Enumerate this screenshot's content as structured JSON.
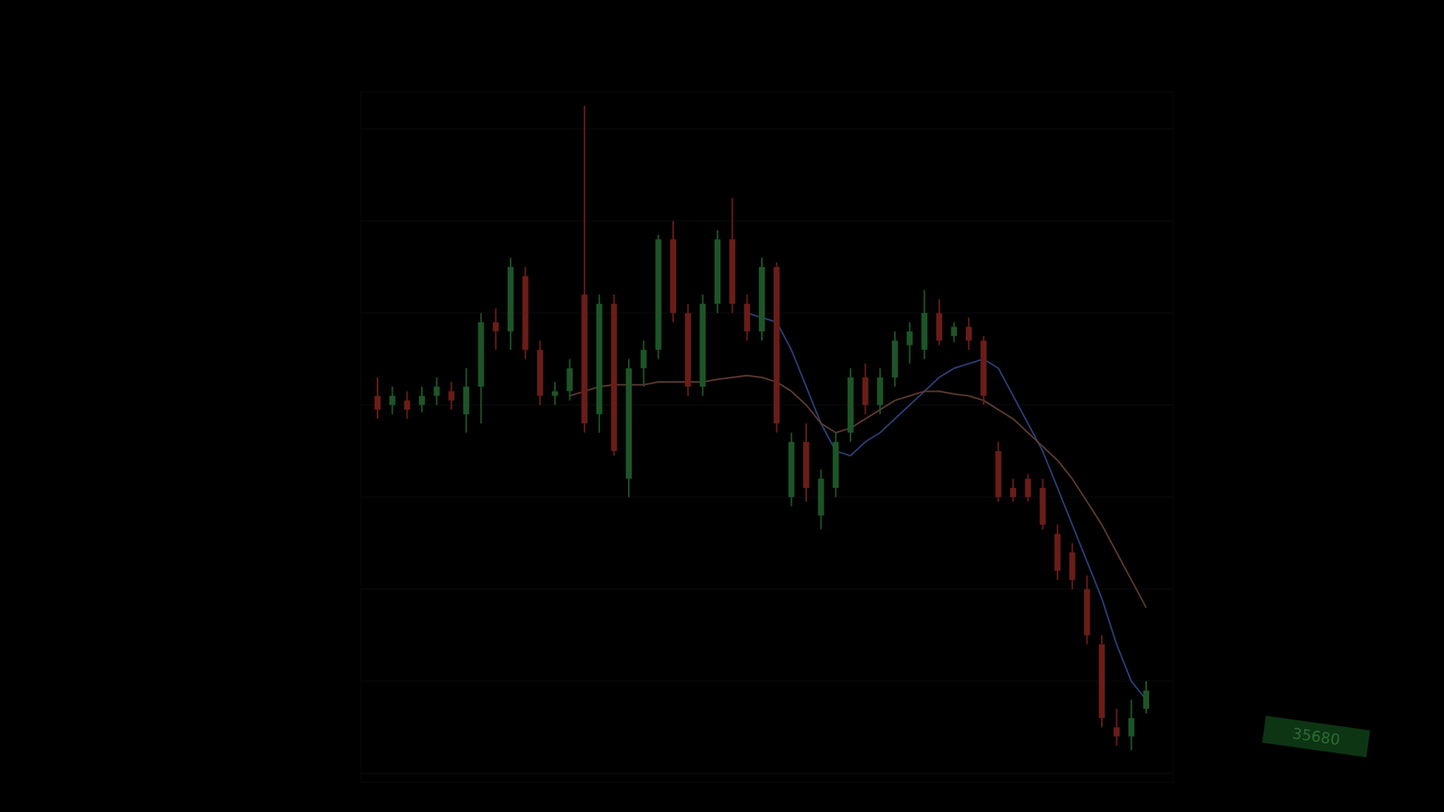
{
  "chart_data": {
    "type": "candlestick",
    "categories": [
      null,
      null,
      null,
      null,
      null,
      null,
      null,
      null,
      null,
      null,
      null,
      null,
      null,
      null,
      null,
      null,
      null,
      null,
      null,
      null,
      null,
      null,
      null,
      null,
      null,
      null,
      null,
      null,
      null,
      null,
      null,
      null,
      null,
      null,
      null,
      null,
      null,
      null,
      null,
      null,
      null,
      null,
      null,
      null,
      null,
      null,
      null,
      null,
      null,
      null,
      null,
      null,
      null
    ],
    "open": [
      36420,
      36400,
      36410,
      36400,
      36420,
      36430,
      36380,
      36440,
      36580,
      36560,
      36680,
      36520,
      36420,
      36430,
      36640,
      36380,
      36620,
      36240,
      36480,
      36520,
      36760,
      36600,
      36440,
      36620,
      36760,
      36620,
      36560,
      36700,
      36200,
      36320,
      36160,
      36220,
      36340,
      36460,
      36400,
      36460,
      36530,
      36520,
      36600,
      36550,
      36570,
      36540,
      36300,
      36220,
      36240,
      36220,
      36120,
      36080,
      36000,
      35880,
      35700,
      35680,
      35740
    ],
    "close": [
      36390,
      36420,
      36390,
      36420,
      36440,
      36410,
      36440,
      36580,
      36560,
      36700,
      36520,
      36420,
      36430,
      36480,
      36360,
      36620,
      36300,
      36480,
      36520,
      36760,
      36600,
      36440,
      36620,
      36760,
      36620,
      36560,
      36700,
      36360,
      36320,
      36220,
      36240,
      36320,
      36460,
      36400,
      36460,
      36540,
      36560,
      36600,
      36540,
      36570,
      36540,
      36420,
      36200,
      36200,
      36200,
      36140,
      36040,
      36020,
      35900,
      35720,
      35680,
      35720,
      35780
    ],
    "high": [
      36460,
      36440,
      36430,
      36440,
      36460,
      36450,
      36480,
      36600,
      36610,
      36720,
      36700,
      36540,
      36450,
      36500,
      37050,
      36640,
      36640,
      36500,
      36540,
      36770,
      36800,
      36620,
      36640,
      36780,
      36850,
      36640,
      36720,
      36710,
      36340,
      36360,
      36260,
      36340,
      36480,
      36490,
      36480,
      36560,
      36580,
      36650,
      36630,
      36580,
      36590,
      36550,
      36320,
      36240,
      36250,
      36240,
      36140,
      36100,
      36030,
      35900,
      35740,
      35760,
      35800
    ],
    "low": [
      36370,
      36380,
      36370,
      36384,
      36400,
      36390,
      36340,
      36360,
      36520,
      36520,
      36500,
      36400,
      36400,
      36410,
      36340,
      36340,
      36290,
      36200,
      36440,
      36500,
      36580,
      36420,
      36420,
      36600,
      36600,
      36540,
      36540,
      36340,
      36180,
      36190,
      36130,
      36200,
      36320,
      36380,
      36380,
      36440,
      36490,
      36500,
      36530,
      36536,
      36520,
      36400,
      36190,
      36190,
      36190,
      36130,
      36020,
      36000,
      35880,
      35700,
      35660,
      35650,
      35730
    ],
    "series": [
      {
        "type": "line",
        "color": "#2b3f78",
        "values": [
          null,
          null,
          null,
          null,
          null,
          null,
          null,
          null,
          null,
          null,
          null,
          null,
          null,
          null,
          null,
          null,
          null,
          null,
          null,
          null,
          null,
          null,
          null,
          null,
          null,
          36600,
          36590,
          36580,
          36520,
          36440,
          36360,
          36300,
          36290,
          36320,
          36340,
          36370,
          36400,
          36430,
          36460,
          36480,
          36490,
          36500,
          36480,
          36420,
          36360,
          36300,
          36220,
          36140,
          36060,
          35980,
          35880,
          35800,
          35760
        ]
      },
      {
        "type": "line",
        "color": "#5e3a30",
        "values": [
          null,
          null,
          null,
          null,
          null,
          null,
          null,
          null,
          null,
          null,
          null,
          null,
          null,
          36420,
          36430,
          36440,
          36444,
          36444,
          36444,
          36450,
          36450,
          36450,
          36450,
          36456,
          36460,
          36464,
          36460,
          36450,
          36430,
          36400,
          36360,
          36340,
          36350,
          36370,
          36390,
          36410,
          36420,
          36430,
          36430,
          36424,
          36420,
          36410,
          36390,
          36370,
          36340,
          36310,
          36280,
          36240,
          36190,
          36140,
          36080,
          36020,
          35960
        ]
      }
    ],
    "ylim": [
      35580,
      37080
    ],
    "yticks": [
      35600,
      35800,
      36000,
      36200,
      36400,
      36600,
      36800,
      37000
    ],
    "grid": true,
    "tick_labels": false,
    "annotations": [
      {
        "text": "35680",
        "y": 35680
      }
    ]
  }
}
